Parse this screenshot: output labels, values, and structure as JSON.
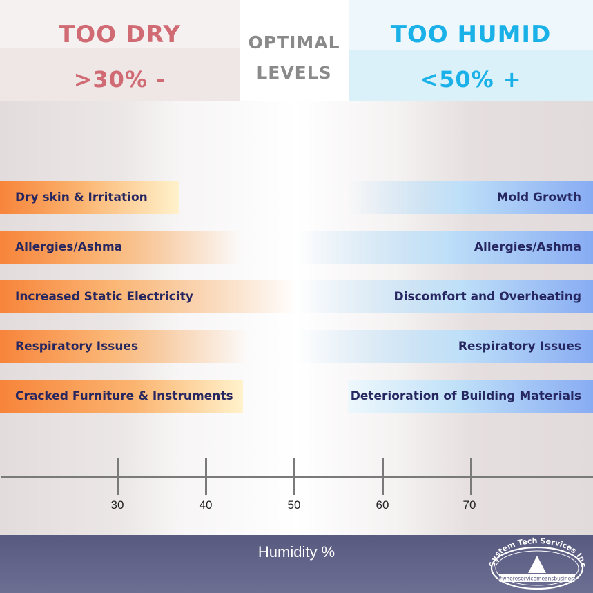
{
  "header": {
    "too_dry": {
      "title": "TOO DRY",
      "range": ">30% -"
    },
    "optimal": {
      "line1": "OPTIMAL",
      "line2": "LEVELS"
    },
    "too_humid": {
      "title": "TOO HUMID",
      "range": "<50% +"
    }
  },
  "dry_effects": [
    "Dry skin & Irritation",
    "Allergies/Ashma",
    "Increased Static Electricity",
    "Respiratory Issues",
    "Cracked Furniture & Instruments"
  ],
  "humid_effects": [
    "Mold Growth",
    "Allergies/Ashma",
    "Discomfort and Overheating",
    "Respiratory Issues",
    "Deterioration of Building Materials"
  ],
  "axis": {
    "ticks": [
      "30",
      "40",
      "50",
      "60",
      "70"
    ],
    "label": "Humidity %"
  },
  "logo": {
    "name": "System Tech Services Inc",
    "tagline": "#whereservicemeansbusiness"
  },
  "colors": {
    "dry_accent": "#d06b74",
    "humid_accent": "#1ab0e8",
    "dry_bar": "#f7873a",
    "humid_bar": "#8ab0f2",
    "bar_text": "#262660",
    "footer": "#5f6186"
  }
}
